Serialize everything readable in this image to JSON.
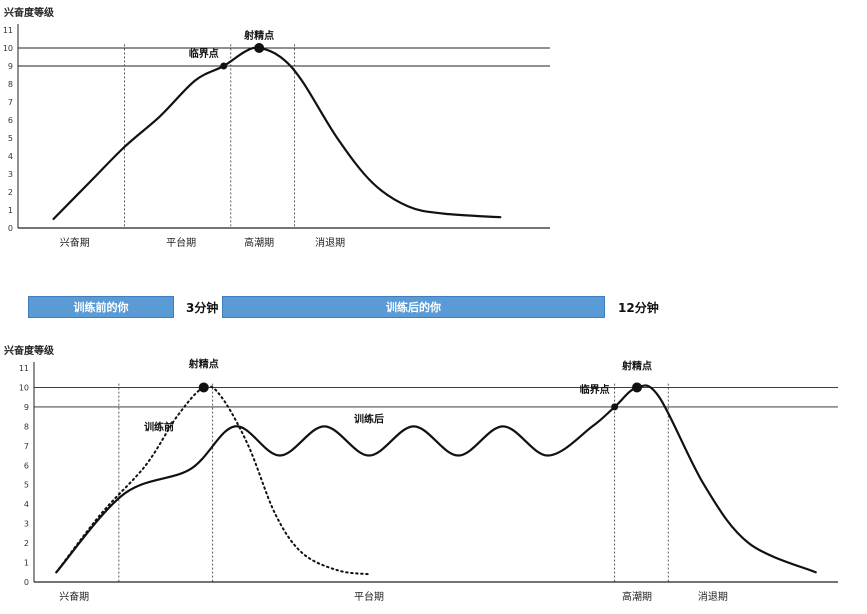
{
  "chart_data": [
    {
      "type": "line",
      "ylabel": "兴奋度等级",
      "ylim": [
        0,
        11
      ],
      "yticks": [
        "0",
        "1",
        "2",
        "3",
        "4",
        "5",
        "6",
        "7",
        "8",
        "9",
        "10",
        "11"
      ],
      "phases": [
        "兴奋期",
        "平台期",
        "高潮期",
        "消退期"
      ],
      "hlines": [
        10,
        9
      ],
      "series": [
        {
          "values": [
            [
              0.5,
              0.5
            ],
            [
              1.0,
              2.5
            ],
            [
              1.5,
              4.5
            ],
            [
              2.0,
              6.2
            ],
            [
              2.5,
              8.2
            ],
            [
              2.9,
              9.0
            ],
            [
              3.2,
              9.8
            ],
            [
              3.4,
              10.0
            ],
            [
              3.7,
              9.5
            ],
            [
              4.0,
              8.2
            ],
            [
              4.5,
              5.0
            ],
            [
              5.0,
              2.5
            ],
            [
              5.5,
              1.2
            ],
            [
              6.0,
              0.8
            ],
            [
              6.8,
              0.6
            ]
          ]
        }
      ],
      "annotations": [
        {
          "label": "射精点",
          "x": 3.4,
          "y": 10
        },
        {
          "label": "临界点",
          "x": 2.9,
          "y": 9
        }
      ]
    },
    {
      "type": "line",
      "ylabel": "兴奋度等级",
      "ylim": [
        0,
        11
      ],
      "yticks": [
        "0",
        "1",
        "2",
        "3",
        "4",
        "5",
        "6",
        "7",
        "8",
        "9",
        "10",
        "11"
      ],
      "phases": [
        "兴奋期",
        "平台期",
        "高潮期",
        "消退期"
      ],
      "hlines": [
        10,
        9
      ],
      "bars": [
        {
          "label": "训练前的你",
          "time": "3分钟"
        },
        {
          "label": "训练后的你",
          "time": "12分钟"
        }
      ],
      "series": [
        {
          "name": "训练前",
          "style": "dotted",
          "values": [
            [
              0.5,
              0.5
            ],
            [
              1.5,
              3.5
            ],
            [
              2.5,
              6.0
            ],
            [
              3.2,
              8.5
            ],
            [
              3.8,
              10.0
            ],
            [
              4.2,
              9.5
            ],
            [
              4.8,
              7.0
            ],
            [
              5.4,
              3.5
            ],
            [
              6.0,
              1.5
            ],
            [
              6.8,
              0.6
            ],
            [
              7.5,
              0.4
            ]
          ]
        },
        {
          "name": "训练后",
          "style": "solid",
          "values": [
            [
              0.5,
              0.5
            ],
            [
              2.0,
              4.5
            ],
            [
              3.5,
              5.8
            ],
            [
              4.5,
              8.0
            ],
            [
              5.5,
              6.5
            ],
            [
              6.5,
              8.0
            ],
            [
              7.5,
              6.5
            ],
            [
              8.5,
              8.0
            ],
            [
              9.5,
              6.5
            ],
            [
              10.5,
              8.0
            ],
            [
              11.5,
              6.5
            ],
            [
              12.5,
              8.0
            ],
            [
              13.0,
              9.0
            ],
            [
              13.5,
              10.0
            ],
            [
              14.0,
              9.5
            ],
            [
              15.0,
              5.0
            ],
            [
              16.0,
              2.0
            ],
            [
              17.5,
              0.5
            ]
          ]
        }
      ],
      "annotations": [
        {
          "label": "射精点",
          "x": 3.8,
          "y": 10
        },
        {
          "label": "射精点",
          "x": 13.5,
          "y": 10
        },
        {
          "label": "临界点",
          "x": 13.0,
          "y": 9
        },
        {
          "label": "训练前",
          "x": 2.8,
          "y": 7.8
        },
        {
          "label": "训练后",
          "x": 7.5,
          "y": 8.2
        }
      ]
    }
  ]
}
